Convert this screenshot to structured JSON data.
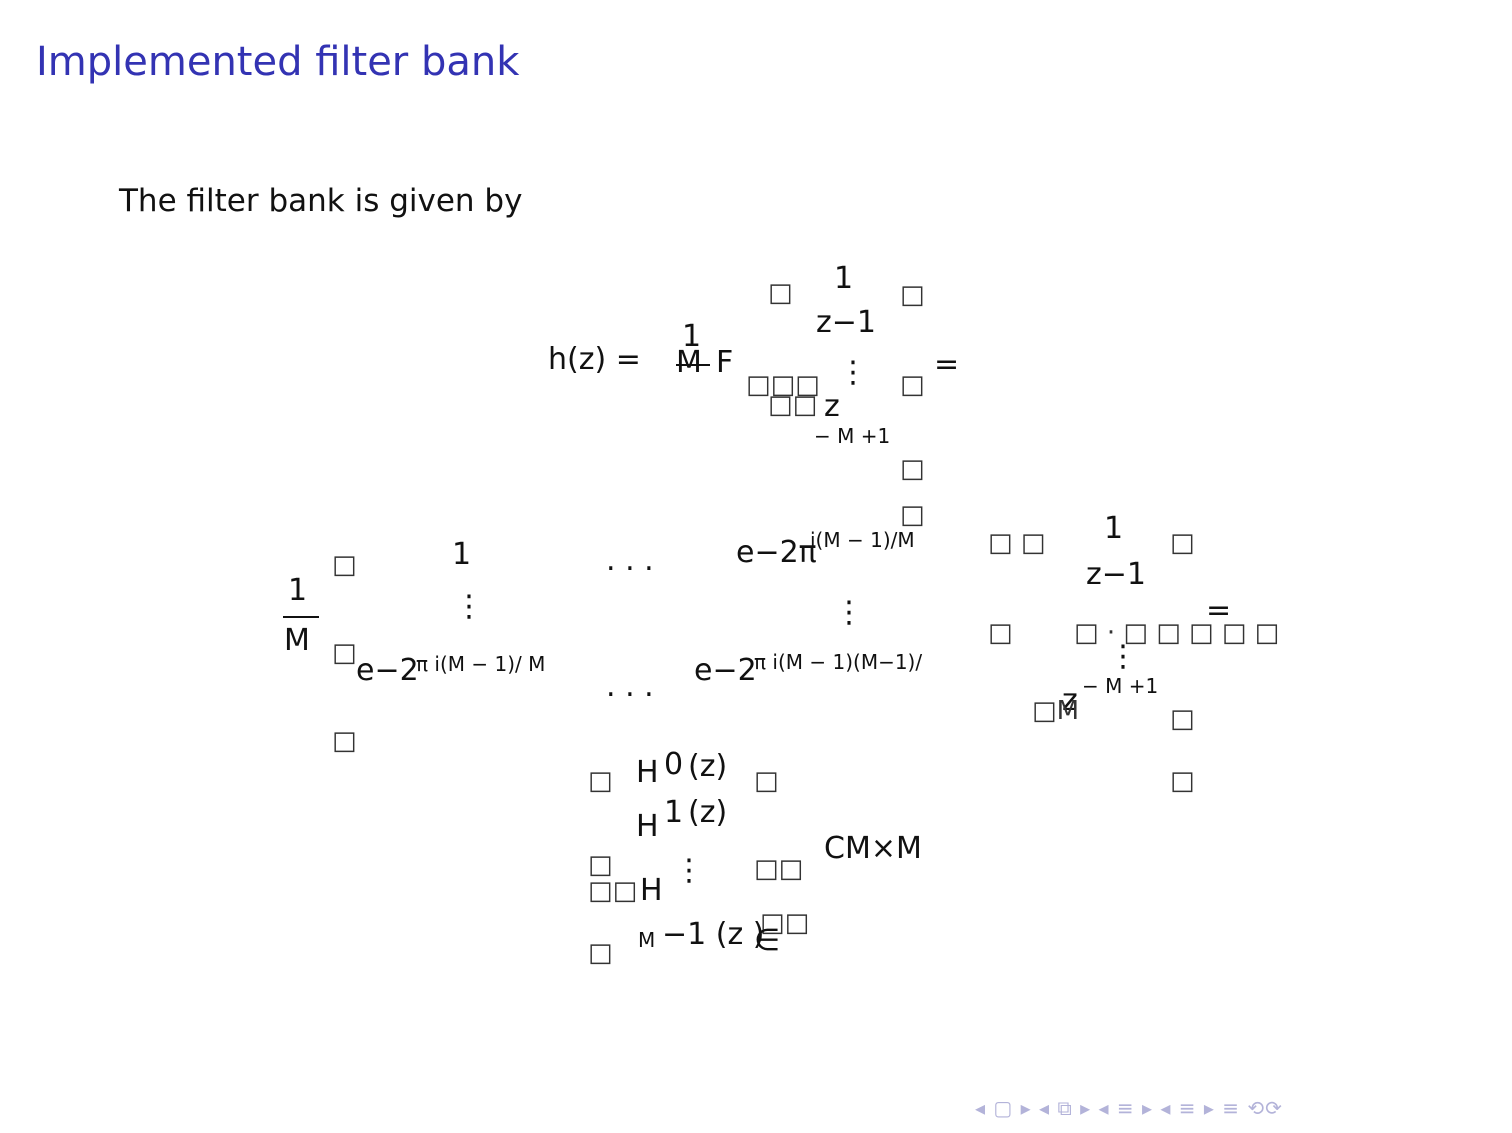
{
  "slide": {
    "title": "Implemented filter bank",
    "intro": "The filter bank is given by"
  },
  "eq1": {
    "lhs": "h(z) =",
    "frac_num": "1",
    "frac_den": "M",
    "F": "F",
    "vec_top": "1",
    "vec_z1": "z−1",
    "vdots": "⋮",
    "vec_last": "z",
    "vec_last_exp": "− M +1",
    "eq": "=",
    "brackets": "□"
  },
  "eq2": {
    "frac_num": "1",
    "frac_den": "M",
    "r1c1": "1",
    "r1dots": ". . .",
    "r1last": "e−2π",
    "r1last_exp": "i(M − 1)/M",
    "col_vdots": "⋮",
    "r3c1": "e−2",
    "r3c1_exp": "π i(M − 1)/ M",
    "r3dots": ". . .",
    "r3last": "e−2",
    "r3last_exp": "π i(M − 1)(M−1)/",
    "vec_top": "1",
    "vec_z1": "z−1",
    "vec_last": "z",
    "vec_last_exp": "− M +1",
    "eq": "=",
    "cm": "□M"
  },
  "eq3": {
    "h0": "H",
    "h0_sub": "0",
    "h0_arg": "(z)",
    "h1": "H",
    "h1_sub": "1",
    "h1_arg": "(z)",
    "vdots": "⋮",
    "hm": "H",
    "hm_sub": "M",
    "hm_arg": "−1 (z )",
    "in": "∈",
    "space": "CM×M"
  },
  "nav": {
    "symbols": "◂ ▢ ▸ ◂ ⧉ ▸ ◂ ≡ ▸ ◂ ≡ ▸   ≡   ⟲⟳"
  }
}
